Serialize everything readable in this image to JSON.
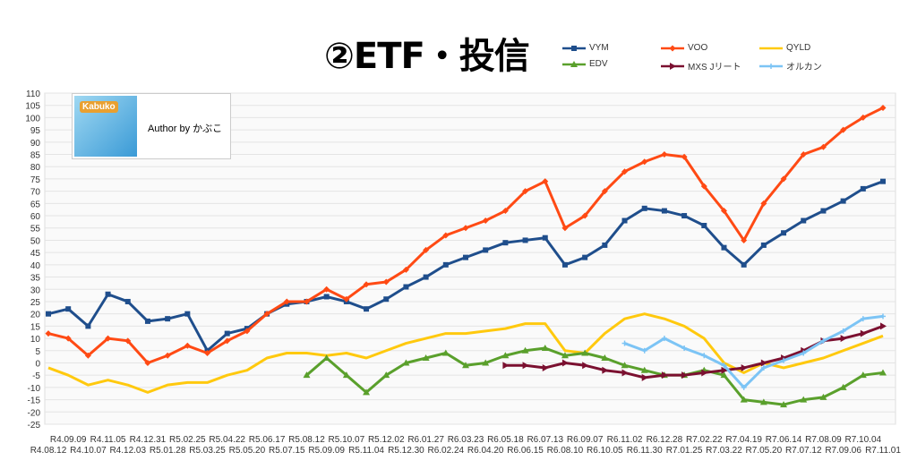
{
  "chart_data": {
    "type": "line",
    "title": "②ETF・投信",
    "xlabel": "",
    "ylabel": "",
    "ylim": [
      -25,
      110
    ],
    "yticks": [
      -25,
      -20,
      -15,
      -10,
      -5,
      0,
      5,
      10,
      15,
      20,
      25,
      30,
      35,
      40,
      45,
      50,
      55,
      60,
      65,
      70,
      75,
      80,
      85,
      90,
      95,
      100,
      105,
      110
    ],
    "grid": true,
    "legend_position": "top-right",
    "categories": [
      "R4.08.12",
      "R4.09.09",
      "R4.10.07",
      "R4.11.05",
      "R4.12.03",
      "R4.12.31",
      "R5.01.28",
      "R5.02.25",
      "R5.03.25",
      "R5.04.22",
      "R5.05.20",
      "R5.06.17",
      "R5.07.15",
      "R5.08.12",
      "R5.09.09",
      "R5.10.07",
      "R5.11.04",
      "R5.12.02",
      "R5.12.30",
      "R6.01.27",
      "R6.02.24",
      "R6.03.23",
      "R6.04.20",
      "R6.05.18",
      "R6.06.15",
      "R6.07.13",
      "R6.08.10",
      "R6.09.07",
      "R6.10.05",
      "R6.11.02",
      "R6.11.30",
      "R6.12.28",
      "R7.01.25",
      "R7.02.22",
      "R7.03.22",
      "R7.04.19",
      "R7.05.20",
      "R7.06.14",
      "R7.07.12",
      "R7.08.09",
      "R7.09.06",
      "R7.10.04",
      "R7.11.01"
    ],
    "series": [
      {
        "name": "VYM",
        "color": "#1f4e8c",
        "marker": "square",
        "values": [
          20,
          22,
          15,
          28,
          25,
          17,
          18,
          20,
          5,
          12,
          14,
          20,
          24,
          25,
          27,
          25,
          22,
          26,
          31,
          35,
          40,
          43,
          46,
          49,
          50,
          51,
          40,
          43,
          48,
          58,
          63,
          62,
          60,
          56,
          47,
          40,
          48,
          53,
          58,
          62,
          66,
          71,
          74
        ]
      },
      {
        "name": "VOO",
        "color": "#ff4a14",
        "marker": "diamond",
        "values": [
          12,
          10,
          3,
          10,
          9,
          0,
          3,
          7,
          4,
          9,
          13,
          20,
          25,
          25,
          30,
          26,
          32,
          33,
          38,
          46,
          52,
          55,
          58,
          62,
          70,
          74,
          55,
          60,
          70,
          78,
          82,
          85,
          84,
          72,
          62,
          50,
          65,
          75,
          85,
          88,
          95,
          100,
          104
        ]
      },
      {
        "name": "QYLD",
        "color": "#ffc90e",
        "marker": "none",
        "values": [
          -2,
          -5,
          -9,
          -7,
          -9,
          -12,
          -9,
          -8,
          -8,
          -5,
          -3,
          2,
          4,
          4,
          3,
          4,
          2,
          5,
          8,
          10,
          12,
          12,
          13,
          14,
          16,
          16,
          5,
          4,
          12,
          18,
          20,
          18,
          15,
          10,
          0,
          -4,
          0,
          -2,
          0,
          2,
          5,
          8,
          11
        ]
      },
      {
        "name": "EDV",
        "color": "#5aa02c",
        "marker": "triangle",
        "values": [
          null,
          null,
          null,
          null,
          null,
          null,
          null,
          null,
          null,
          null,
          null,
          null,
          null,
          -5,
          2,
          -5,
          -12,
          -5,
          0,
          2,
          4,
          -1,
          0,
          3,
          5,
          6,
          3,
          4,
          2,
          -1,
          -3,
          -5,
          -5,
          -3,
          -5,
          -15,
          -16,
          -17,
          -15,
          -14,
          -10,
          -5,
          -4
        ]
      },
      {
        "name": "MXS Jリート",
        "color": "#7b1030",
        "marker": "arrow",
        "values": [
          null,
          null,
          null,
          null,
          null,
          null,
          null,
          null,
          null,
          null,
          null,
          null,
          null,
          null,
          null,
          null,
          null,
          null,
          null,
          null,
          null,
          null,
          null,
          -1,
          -1,
          -2,
          0,
          -1,
          -3,
          -4,
          -6,
          -5,
          -5,
          -4,
          -3,
          -2,
          0,
          2,
          5,
          9,
          10,
          12,
          15
        ]
      },
      {
        "name": "オルカン",
        "color": "#7cc4f5",
        "marker": "cross",
        "values": [
          null,
          null,
          null,
          null,
          null,
          null,
          null,
          null,
          null,
          null,
          null,
          null,
          null,
          null,
          null,
          null,
          null,
          null,
          null,
          null,
          null,
          null,
          null,
          null,
          null,
          null,
          null,
          null,
          null,
          8,
          5,
          10,
          6,
          3,
          -1,
          -10,
          -2,
          1,
          4,
          9,
          13,
          18,
          19
        ]
      }
    ]
  },
  "author": {
    "logo_text": "Kabuko",
    "text": "Author by かぶこ"
  }
}
